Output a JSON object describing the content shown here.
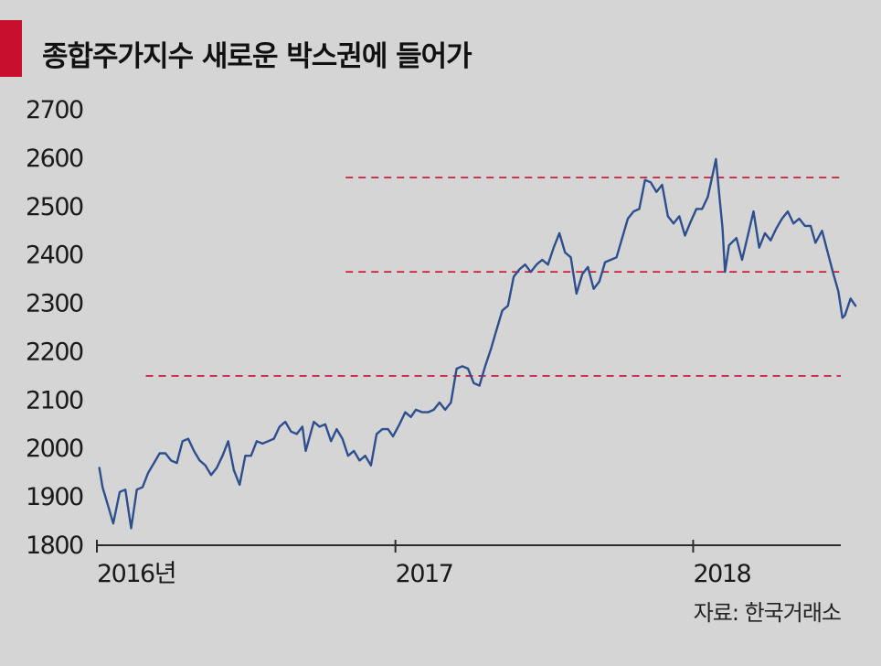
{
  "title": "종합주가지수 새로운 박스권에 들어가",
  "source": "자료: 한국거래소",
  "colors": {
    "background": "#d5d5d6",
    "accent": "#c8102e",
    "line": "#2d4f8e",
    "reference": "#c8102e"
  },
  "chart_data": {
    "type": "line",
    "title": "종합주가지수 새로운 박스권에 들어가",
    "xlabel": "",
    "ylabel": "",
    "ylim": [
      1800,
      2700
    ],
    "yticks": [
      "2700",
      "2600",
      "2500",
      "2400",
      "2300",
      "2200",
      "2100",
      "2000",
      "1900",
      "1800"
    ],
    "x_range": [
      "2016-01-01",
      "2018-07-01"
    ],
    "xticks": [
      {
        "date": "2016-01-01",
        "label": "2016년"
      },
      {
        "date": "2017-01-01",
        "label": "2017"
      },
      {
        "date": "2018-01-01",
        "label": "2018"
      }
    ],
    "reference_lines": [
      {
        "value": 2560,
        "from": "2016-11-01"
      },
      {
        "value": 2365,
        "from": "2016-11-01"
      },
      {
        "value": 2150,
        "from": "2016-03-01"
      }
    ],
    "series": [
      {
        "points": [
          [
            "2016-01-04",
            1960
          ],
          [
            "2016-01-08",
            1920
          ],
          [
            "2016-01-15",
            1880
          ],
          [
            "2016-01-21",
            1845
          ],
          [
            "2016-01-29",
            1910
          ],
          [
            "2016-02-05",
            1915
          ],
          [
            "2016-02-12",
            1835
          ],
          [
            "2016-02-19",
            1915
          ],
          [
            "2016-02-26",
            1920
          ],
          [
            "2016-03-04",
            1950
          ],
          [
            "2016-03-11",
            1970
          ],
          [
            "2016-03-18",
            1990
          ],
          [
            "2016-03-25",
            1990
          ],
          [
            "2016-04-01",
            1975
          ],
          [
            "2016-04-08",
            1970
          ],
          [
            "2016-04-15",
            2015
          ],
          [
            "2016-04-22",
            2020
          ],
          [
            "2016-04-29",
            1995
          ],
          [
            "2016-05-06",
            1975
          ],
          [
            "2016-05-13",
            1965
          ],
          [
            "2016-05-20",
            1945
          ],
          [
            "2016-05-27",
            1960
          ],
          [
            "2016-06-03",
            1985
          ],
          [
            "2016-06-10",
            2015
          ],
          [
            "2016-06-17",
            1955
          ],
          [
            "2016-06-24",
            1925
          ],
          [
            "2016-07-01",
            1985
          ],
          [
            "2016-07-08",
            1985
          ],
          [
            "2016-07-15",
            2015
          ],
          [
            "2016-07-22",
            2010
          ],
          [
            "2016-07-29",
            2015
          ],
          [
            "2016-08-05",
            2020
          ],
          [
            "2016-08-12",
            2045
          ],
          [
            "2016-08-19",
            2055
          ],
          [
            "2016-08-26",
            2035
          ],
          [
            "2016-09-02",
            2030
          ],
          [
            "2016-09-09",
            2045
          ],
          [
            "2016-09-13",
            1995
          ],
          [
            "2016-09-23",
            2055
          ],
          [
            "2016-09-30",
            2045
          ],
          [
            "2016-10-07",
            2050
          ],
          [
            "2016-10-14",
            2015
          ],
          [
            "2016-10-21",
            2040
          ],
          [
            "2016-10-28",
            2020
          ],
          [
            "2016-11-04",
            1985
          ],
          [
            "2016-11-11",
            1995
          ],
          [
            "2016-11-18",
            1975
          ],
          [
            "2016-11-25",
            1985
          ],
          [
            "2016-12-02",
            1965
          ],
          [
            "2016-12-09",
            2030
          ],
          [
            "2016-12-16",
            2040
          ],
          [
            "2016-12-23",
            2040
          ],
          [
            "2016-12-29",
            2025
          ],
          [
            "2017-01-06",
            2050
          ],
          [
            "2017-01-13",
            2075
          ],
          [
            "2017-01-20",
            2065
          ],
          [
            "2017-01-26",
            2080
          ],
          [
            "2017-02-03",
            2075
          ],
          [
            "2017-02-10",
            2075
          ],
          [
            "2017-02-17",
            2080
          ],
          [
            "2017-02-24",
            2095
          ],
          [
            "2017-03-03",
            2080
          ],
          [
            "2017-03-10",
            2095
          ],
          [
            "2017-03-17",
            2165
          ],
          [
            "2017-03-24",
            2170
          ],
          [
            "2017-03-31",
            2165
          ],
          [
            "2017-04-07",
            2135
          ],
          [
            "2017-04-14",
            2130
          ],
          [
            "2017-04-21",
            2170
          ],
          [
            "2017-04-28",
            2205
          ],
          [
            "2017-05-04",
            2240
          ],
          [
            "2017-05-12",
            2285
          ],
          [
            "2017-05-19",
            2295
          ],
          [
            "2017-05-26",
            2355
          ],
          [
            "2017-06-02",
            2370
          ],
          [
            "2017-06-09",
            2380
          ],
          [
            "2017-06-16",
            2365
          ],
          [
            "2017-06-23",
            2380
          ],
          [
            "2017-06-30",
            2390
          ],
          [
            "2017-07-07",
            2380
          ],
          [
            "2017-07-14",
            2415
          ],
          [
            "2017-07-21",
            2445
          ],
          [
            "2017-07-28",
            2405
          ],
          [
            "2017-08-04",
            2395
          ],
          [
            "2017-08-11",
            2320
          ],
          [
            "2017-08-18",
            2360
          ],
          [
            "2017-08-25",
            2375
          ],
          [
            "2017-09-01",
            2330
          ],
          [
            "2017-09-08",
            2345
          ],
          [
            "2017-09-15",
            2385
          ],
          [
            "2017-09-22",
            2390
          ],
          [
            "2017-09-29",
            2395
          ],
          [
            "2017-10-13",
            2475
          ],
          [
            "2017-10-20",
            2490
          ],
          [
            "2017-10-27",
            2495
          ],
          [
            "2017-11-03",
            2555
          ],
          [
            "2017-11-10",
            2550
          ],
          [
            "2017-11-17",
            2530
          ],
          [
            "2017-11-24",
            2545
          ],
          [
            "2017-12-01",
            2480
          ],
          [
            "2017-12-08",
            2465
          ],
          [
            "2017-12-15",
            2480
          ],
          [
            "2017-12-22",
            2440
          ],
          [
            "2017-12-28",
            2465
          ],
          [
            "2018-01-05",
            2495
          ],
          [
            "2018-01-12",
            2495
          ],
          [
            "2018-01-19",
            2520
          ],
          [
            "2018-01-26",
            2575
          ],
          [
            "2018-01-29",
            2598
          ],
          [
            "2018-02-02",
            2525
          ],
          [
            "2018-02-06",
            2455
          ],
          [
            "2018-02-09",
            2365
          ],
          [
            "2018-02-14",
            2420
          ],
          [
            "2018-02-23",
            2435
          ],
          [
            "2018-03-02",
            2390
          ],
          [
            "2018-03-09",
            2440
          ],
          [
            "2018-03-16",
            2490
          ],
          [
            "2018-03-23",
            2415
          ],
          [
            "2018-03-30",
            2445
          ],
          [
            "2018-04-06",
            2430
          ],
          [
            "2018-04-13",
            2455
          ],
          [
            "2018-04-20",
            2475
          ],
          [
            "2018-04-27",
            2490
          ],
          [
            "2018-05-04",
            2465
          ],
          [
            "2018-05-11",
            2475
          ],
          [
            "2018-05-18",
            2460
          ],
          [
            "2018-05-25",
            2460
          ],
          [
            "2018-05-31",
            2425
          ],
          [
            "2018-06-08",
            2450
          ],
          [
            "2018-06-15",
            2405
          ],
          [
            "2018-06-22",
            2360
          ],
          [
            "2018-06-28",
            2325
          ],
          [
            "2018-07-03",
            2270
          ],
          [
            "2018-07-06",
            2275
          ],
          [
            "2018-07-10",
            2295
          ],
          [
            "2018-07-13",
            2310
          ],
          [
            "2018-07-19",
            2295
          ]
        ]
      }
    ]
  }
}
